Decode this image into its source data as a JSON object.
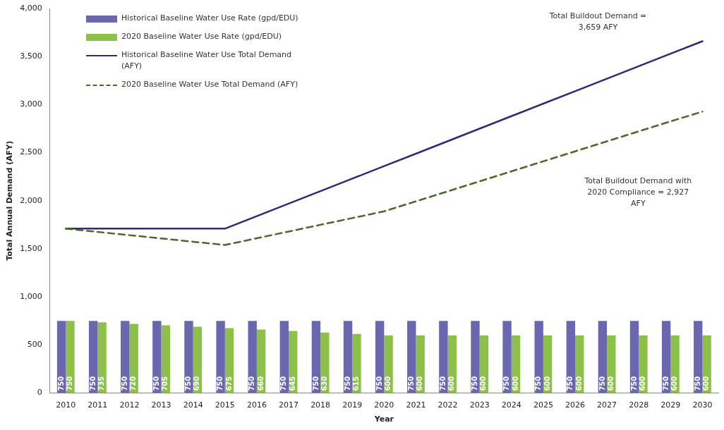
{
  "chart_data": {
    "type": "bar",
    "xlabel": "Year",
    "ylabel": "Total Annual Demand (AFY)",
    "categories": [
      "2010",
      "2011",
      "2012",
      "2013",
      "2014",
      "2015",
      "2016",
      "2017",
      "2018",
      "2019",
      "2020",
      "2021",
      "2022",
      "2023",
      "2024",
      "2025",
      "2026",
      "2027",
      "2028",
      "2029",
      "2030"
    ],
    "series": [
      {
        "name": "Historical Baseline Water Use Rate (gpd/EDU)",
        "color": "#6a67b0",
        "values": [
          750,
          750,
          750,
          750,
          750,
          750,
          750,
          750,
          750,
          750,
          750,
          750,
          750,
          750,
          750,
          750,
          750,
          750,
          750,
          750,
          750
        ],
        "value_labels": [
          "750",
          "750",
          "750",
          "750",
          "750",
          "750",
          "750",
          "750",
          "750",
          "750",
          "750",
          "750",
          "750",
          "750",
          "750",
          "750",
          "750",
          "750",
          "750",
          "750",
          "750"
        ]
      },
      {
        "name": "2020 Baseline Water Use Rate (gpd/EDU)",
        "color": "#8dc04a",
        "values": [
          750,
          735,
          720,
          705,
          690,
          675,
          660,
          645,
          630,
          615,
          600,
          600,
          600,
          600,
          600,
          600,
          600,
          600,
          600,
          600,
          600
        ],
        "value_labels": [
          "750",
          "735",
          "720",
          "705",
          "690",
          "675",
          "660",
          "645",
          "630",
          "615",
          "600",
          "600",
          "600",
          "600",
          "600",
          "600",
          "600",
          "600",
          "600",
          "600",
          "600"
        ]
      },
      {
        "name": "Historical Baseline Water Use Total Demand (AFY)",
        "type": "line",
        "color": "#2e2a78",
        "line_style": "solid",
        "values": [
          1710,
          1710,
          1710,
          1710,
          1710,
          1710,
          1840,
          1970,
          2100,
          2230,
          2360,
          2490,
          2620,
          2750,
          2880,
          3010,
          3140,
          3270,
          3400,
          3530,
          3659
        ]
      },
      {
        "name": "2020 Baseline Water Use Total Demand (AFY)",
        "type": "line",
        "color": "#4a6a2a",
        "line_style": "dashed",
        "values": [
          1710,
          1676,
          1642,
          1608,
          1574,
          1540,
          1610,
          1680,
          1750,
          1820,
          1890,
          1994,
          2098,
          2202,
          2306,
          2410,
          2514,
          2618,
          2722,
          2826,
          2927
        ]
      }
    ],
    "ylim": [
      0,
      4000
    ],
    "yticks": [
      {
        "value": 0,
        "label": "0"
      },
      {
        "value": 500,
        "label": "500"
      },
      {
        "value": 1000,
        "label": "1,000"
      },
      {
        "value": 1500,
        "label": "1,500"
      },
      {
        "value": 2000,
        "label": "2,000"
      },
      {
        "value": 2500,
        "label": "2,500"
      },
      {
        "value": 3000,
        "label": "3,000"
      },
      {
        "value": 3500,
        "label": "3,500"
      },
      {
        "value": 4000,
        "label": "4,000"
      }
    ],
    "grid": false,
    "legend": "top left",
    "marker": "none",
    "annotations": [
      "Total Buildout Demand = 3,659 AFY",
      "Total Buildout Demand with 2020 Compliance = 2,927 AFY"
    ]
  }
}
